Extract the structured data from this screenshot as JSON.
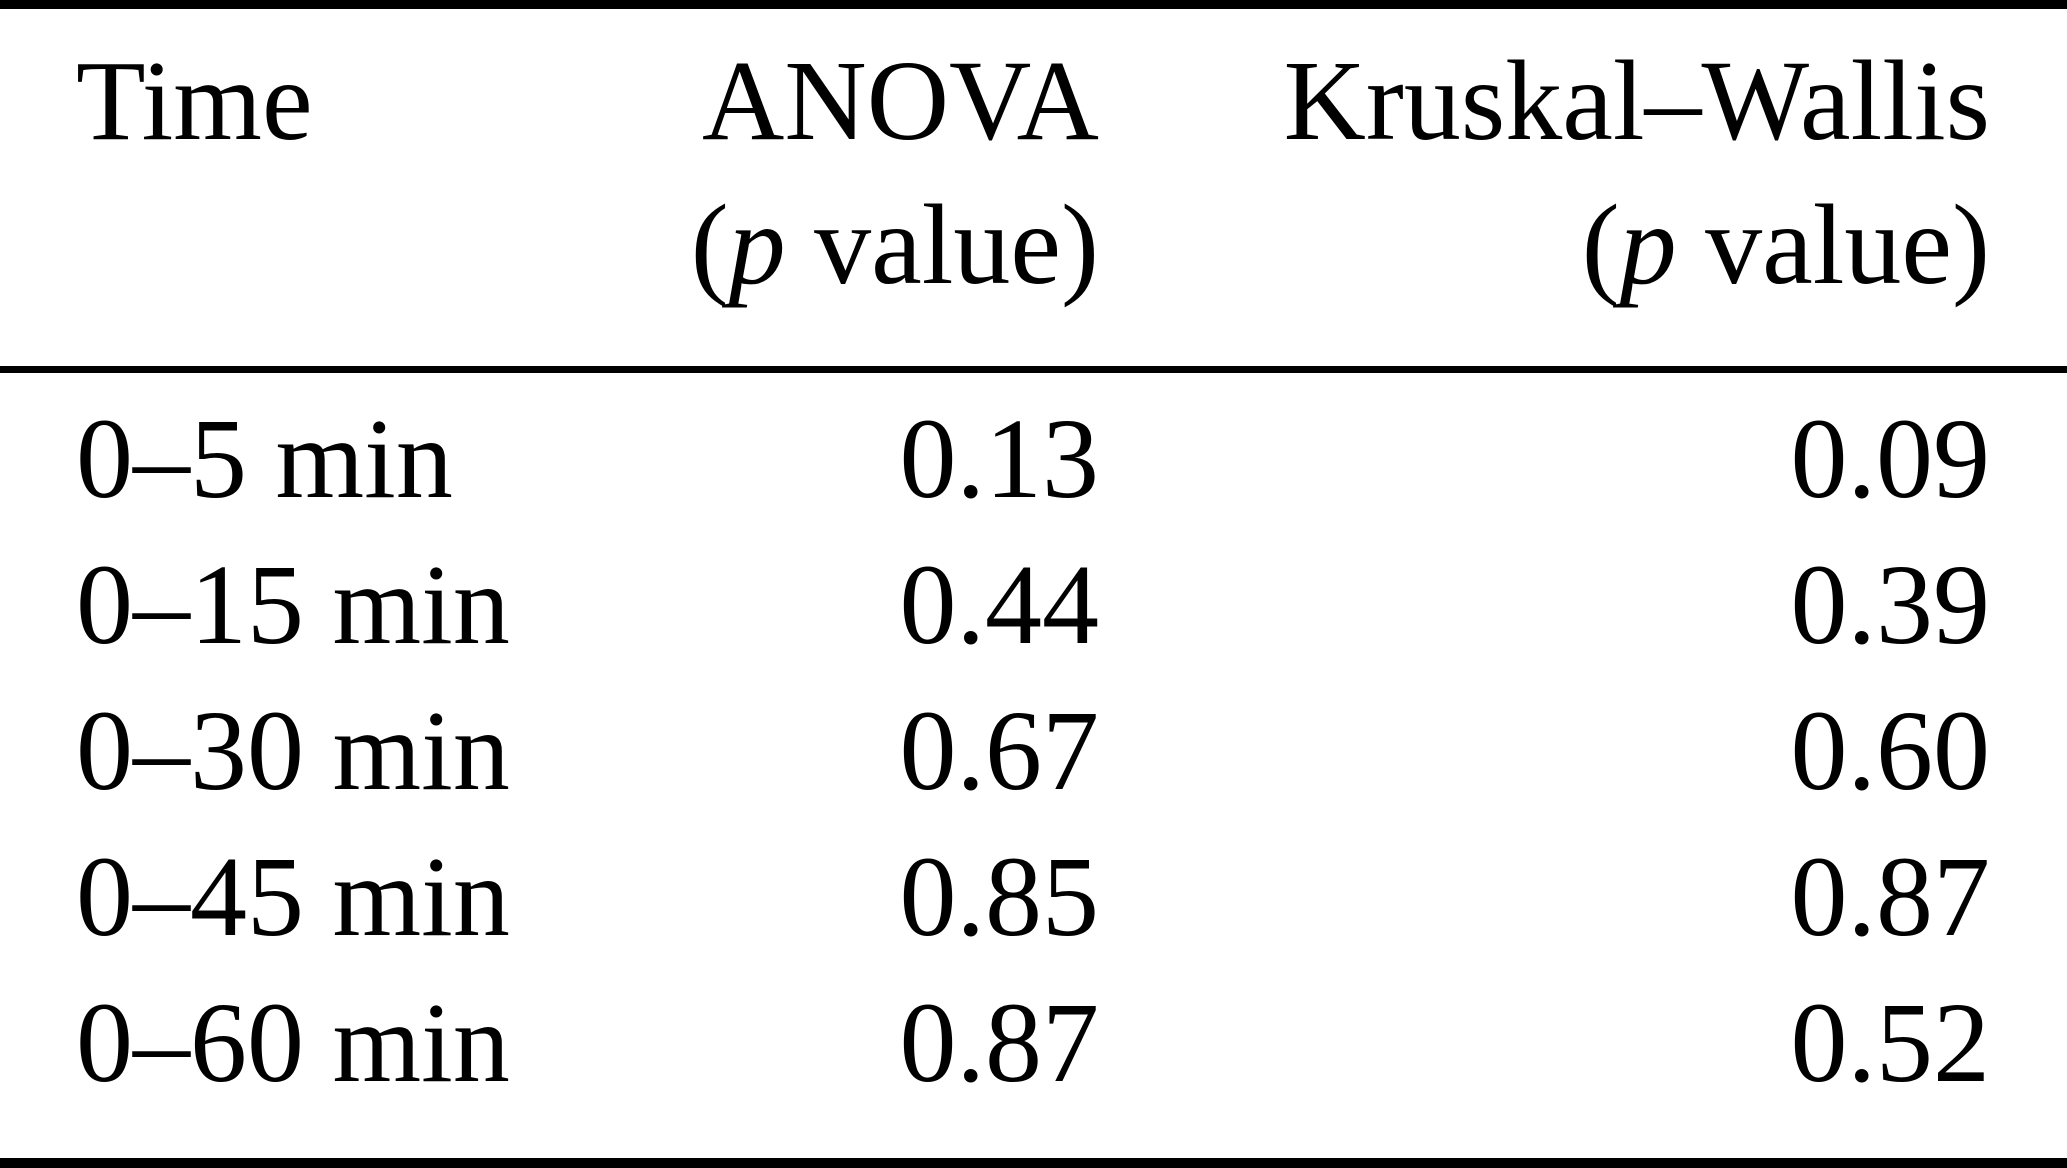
{
  "figure": {
    "type": "table",
    "colors": {
      "text": "#000000",
      "background": "#ffffff",
      "rule": "#000000"
    },
    "columns": [
      {
        "id": "time",
        "line1": "Time",
        "line2_open": "",
        "line2_p": "",
        "line2_rest": ""
      },
      {
        "id": "anova",
        "line1": "ANOVA",
        "line2_open": "(",
        "line2_p": "p",
        "line2_rest": " value)"
      },
      {
        "id": "kruskal_wallis",
        "line1": "Kruskal–Wallis",
        "line2_open": "(",
        "line2_p": "p",
        "line2_rest": " value)"
      }
    ],
    "rows": [
      {
        "time": "0–5 min",
        "anova": "0.13",
        "kruskal_wallis": "0.09"
      },
      {
        "time": "0–15 min",
        "anova": "0.44",
        "kruskal_wallis": "0.39"
      },
      {
        "time": "0–30 min",
        "anova": "0.67",
        "kruskal_wallis": "0.60"
      },
      {
        "time": "0–45 min",
        "anova": "0.85",
        "kruskal_wallis": "0.87"
      },
      {
        "time": "0–60 min",
        "anova": "0.87",
        "kruskal_wallis": "0.52"
      }
    ]
  }
}
